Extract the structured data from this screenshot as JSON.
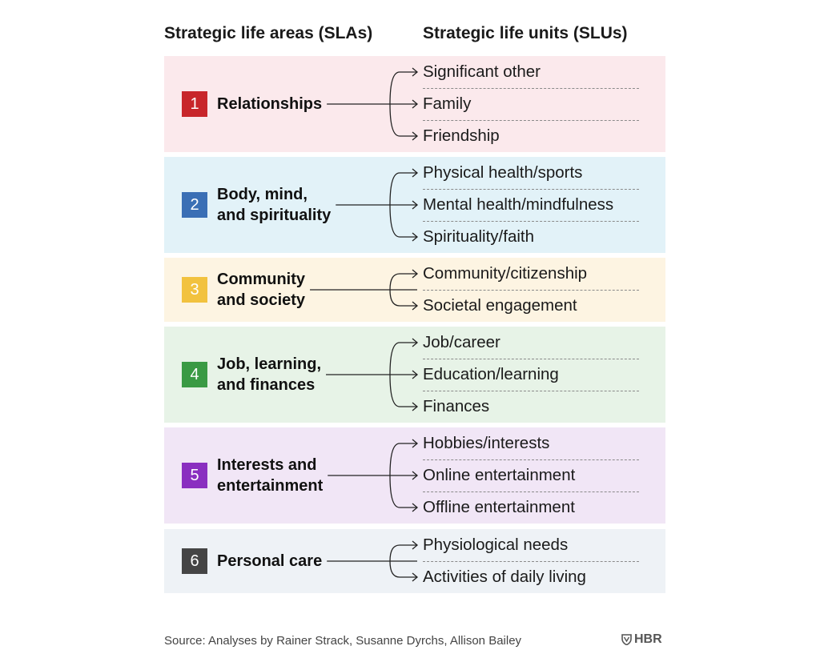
{
  "headers": {
    "left": "Strategic life areas (SLAs)",
    "right": "Strategic life units (SLUs)"
  },
  "areas": [
    {
      "number": "1",
      "label_lines": [
        "Relationships"
      ],
      "badge_color": "#c8262b",
      "band_color": "#fbe9ec",
      "units": [
        "Significant other",
        "Family",
        "Friendship"
      ]
    },
    {
      "number": "2",
      "label_lines": [
        "Body, mind,",
        "and spirituality"
      ],
      "badge_color": "#3a6fb5",
      "band_color": "#e2f2f8",
      "units": [
        "Physical health/sports",
        "Mental health/mindfulness",
        "Spirituality/faith"
      ]
    },
    {
      "number": "3",
      "label_lines": [
        "Community",
        "and society"
      ],
      "badge_color": "#f2c23f",
      "band_color": "#fdf4e2",
      "units": [
        "Community/citizenship",
        "Societal engagement"
      ]
    },
    {
      "number": "4",
      "label_lines": [
        "Job, learning,",
        "and finances"
      ],
      "badge_color": "#3a9a44",
      "band_color": "#e7f3e7",
      "units": [
        "Job/career",
        "Education/learning",
        "Finances"
      ]
    },
    {
      "number": "5",
      "label_lines": [
        "Interests and",
        "entertainment"
      ],
      "badge_color": "#8a2fc0",
      "band_color": "#f1e6f6",
      "units": [
        "Hobbies/interests",
        "Online entertainment",
        "Offline entertainment"
      ]
    },
    {
      "number": "6",
      "label_lines": [
        "Personal care"
      ],
      "badge_color": "#454545",
      "band_color": "#eef2f6",
      "units": [
        "Physiological needs",
        "Activities of daily living"
      ]
    }
  ],
  "footer": {
    "source": "Source: Analyses by Rainer Strack, Susanne Dyrchs, Allison Bailey",
    "logo_text": "HBR",
    "logo_icon": "shield-icon"
  }
}
